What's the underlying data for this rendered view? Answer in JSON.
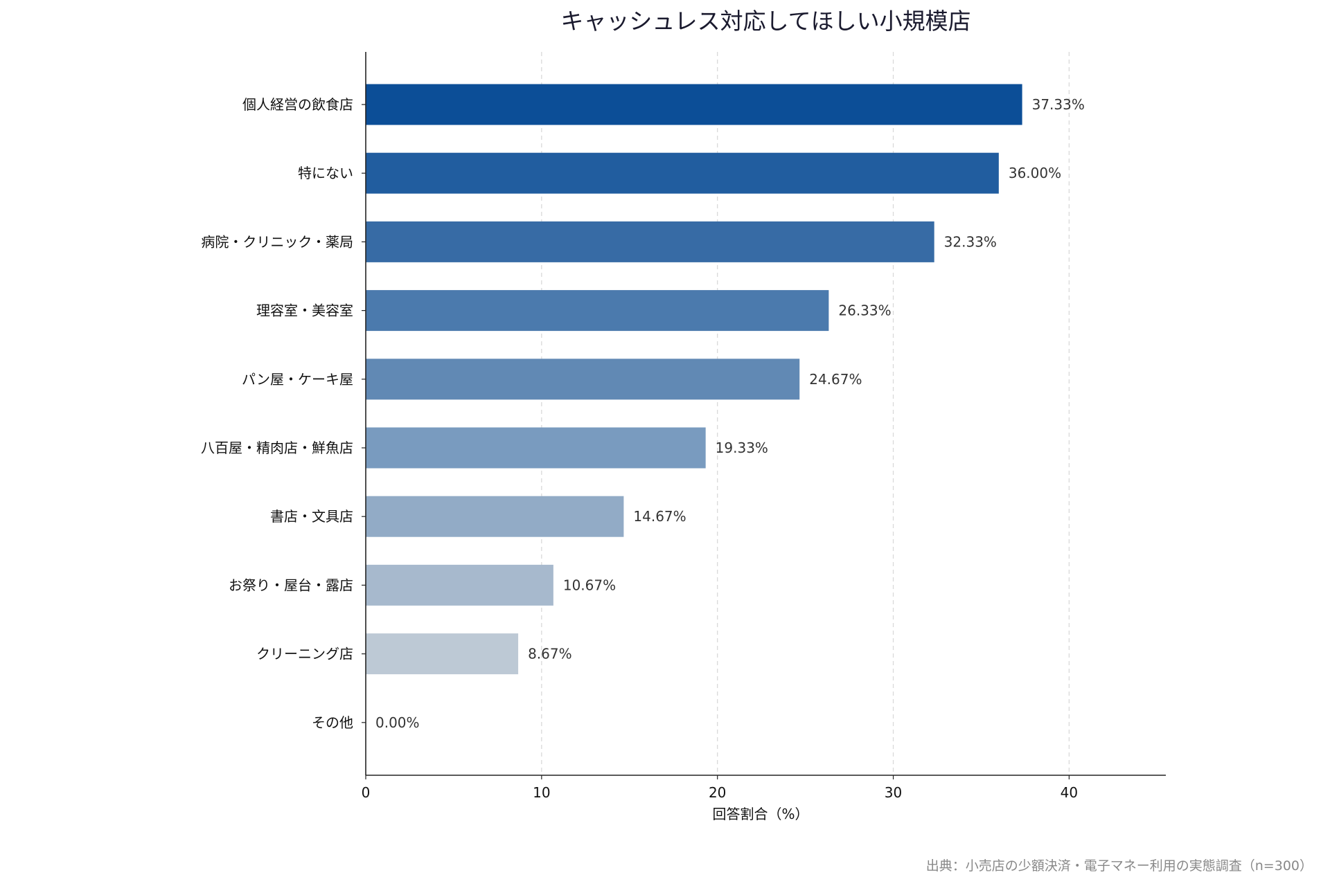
{
  "chart_data": {
    "type": "bar",
    "orientation": "horizontal",
    "title": "キャッシュレス対応してほしい小規模店",
    "xlabel": "回答割合（%）",
    "ylabel": "",
    "xlim": [
      0,
      45.5
    ],
    "xticks": [
      0,
      10,
      20,
      30,
      40
    ],
    "grid": "x-dashed",
    "categories": [
      "個人経営の飲食店",
      "特にない",
      "病院・クリニック・薬局",
      "理容室・美容室",
      "パン屋・ケーキ屋",
      "八百屋・精肉店・鮮魚店",
      "書店・文具店",
      "お祭り・屋台・露店",
      "クリーニング店",
      "その他"
    ],
    "values": [
      37.33,
      36.0,
      32.33,
      26.33,
      24.67,
      19.33,
      14.67,
      10.67,
      8.67,
      0.0
    ],
    "value_labels": [
      "37.33%",
      "36.00%",
      "32.33%",
      "26.33%",
      "24.67%",
      "19.33%",
      "14.67%",
      "10.67%",
      "8.67%",
      "0.00%"
    ],
    "bar_colors": [
      "#0c4e97",
      "#215d9f",
      "#376ba5",
      "#4b7aad",
      "#6189b4",
      "#799bbf",
      "#92abc6",
      "#a7b9cd",
      "#bdc9d5",
      "#d3dae1"
    ],
    "source": "出典：小売店の少額決済・電子マネー利用の実態調査（n=300）"
  }
}
